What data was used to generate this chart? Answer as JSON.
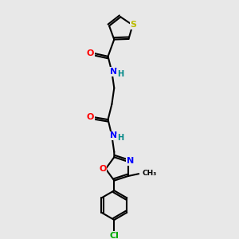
{
  "background_color": "#e8e8e8",
  "bond_color": "#000000",
  "atom_colors": {
    "S": "#bbbb00",
    "N": "#0000ff",
    "O": "#ff0000",
    "Cl": "#00aa00",
    "H": "#008888",
    "C": "#000000"
  },
  "figsize": [
    3.0,
    3.0
  ],
  "dpi": 100
}
